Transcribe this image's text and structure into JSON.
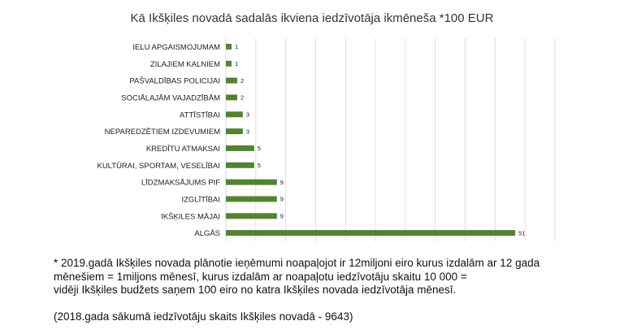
{
  "chart_data": {
    "type": "bar",
    "orientation": "horizontal",
    "title": "Kā Ikšķiles novadā sadalās ikviena iedzīvotāja ikmēneša *100 EUR",
    "categories": [
      "IELU APGAISMOJUMAM",
      "ZILAJIEM KALNIEM",
      "PAŠVALDĪBAS POLICIJAI",
      "SOCIĀLAJĀM VAJADZĪBĀM",
      "ATTĪSTĪBAI",
      "NEPAREDZĒTIEM IZDEVUMIEM",
      "KREDĪTU ATMAKSAI",
      "KULTŪRAI, SPORTAM, VESELĪBAI",
      "LĪDZMAKSĀJUMS PIF",
      "IZGLĪTĪBAI",
      "IKŠĶILES MĀJAI",
      "ALGĀS"
    ],
    "values": [
      1,
      1,
      2,
      2,
      3,
      3,
      5,
      5,
      9,
      9,
      9,
      51
    ],
    "xlim": [
      0,
      58
    ],
    "grid": true,
    "legend": "none",
    "bar_color": "#548235",
    "grid_color": "#d9d9d9"
  },
  "footnote": {
    "line1": "* 2019.gadā Ikšķiles novada plānotie ieņēmumi noapaļojot ir 12miljoni eiro kurus izdalām ar 12 gada",
    "line2": "mēnešiem = 1miljons mēnesī, kurus izdalām ar noapaļotu iedzīvotāju skaitu 10 000  =",
    "line3": "vidēji Ikšķiles budžets saņem 100 eiro no katra Ikšķiles novada iedzīvotāja mēnesī.",
    "line4": "(2018.gada sākumā iedzīvotāju skaits Ikšķiles novadā - 9643)"
  }
}
